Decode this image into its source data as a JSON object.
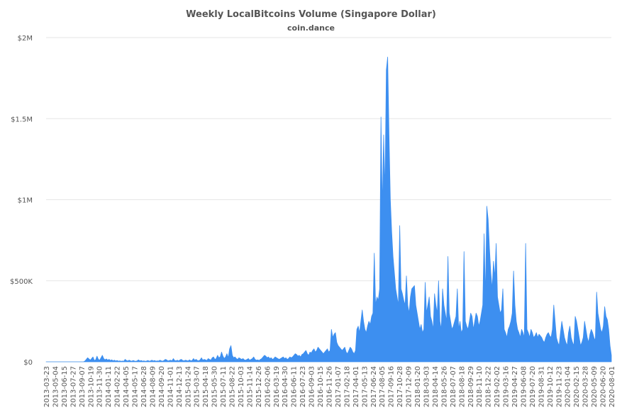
{
  "chart_data": {
    "type": "area",
    "title": "Weekly LocalBitcoins Volume (Singapore Dollar)",
    "subtitle": "coin.dance",
    "xlabel": "",
    "ylabel": "",
    "ylim": [
      0,
      2000000
    ],
    "y_ticks": [
      {
        "value": 0,
        "label": "$0"
      },
      {
        "value": 500000,
        "label": "$500K"
      },
      {
        "value": 1000000,
        "label": "$1M"
      },
      {
        "value": 1500000,
        "label": "$1.5M"
      },
      {
        "value": 2000000,
        "label": "$2M"
      }
    ],
    "grid": true,
    "legend": "none",
    "color": "#3d8ff0",
    "x_tick_labels": [
      "2013-03-23",
      "2013-05-04",
      "2013-06-15",
      "2013-07-27",
      "2013-09-07",
      "2013-10-19",
      "2013-11-30",
      "2014-01-11",
      "2014-02-22",
      "2014-04-05",
      "2014-05-17",
      "2014-06-28",
      "2014-08-09",
      "2014-09-20",
      "2014-11-01",
      "2014-12-13",
      "2015-01-24",
      "2015-03-07",
      "2015-04-18",
      "2015-05-30",
      "2015-07-11",
      "2015-08-22",
      "2015-10-03",
      "2015-11-14",
      "2015-12-26",
      "2016-02-06",
      "2016-03-19",
      "2016-04-30",
      "2016-06-11",
      "2016-07-23",
      "2016-09-03",
      "2016-10-15",
      "2016-11-26",
      "2017-01-07",
      "2017-02-18",
      "2017-04-01",
      "2017-05-13",
      "2017-06-24",
      "2017-08-05",
      "2017-09-16",
      "2017-10-28",
      "2017-12-09",
      "2018-01-20",
      "2018-03-03",
      "2018-04-14",
      "2018-05-26",
      "2018-07-07",
      "2018-08-18",
      "2018-09-29",
      "2018-11-10",
      "2018-12-22",
      "2019-02-02",
      "2019-03-16",
      "2019-04-27",
      "2019-06-08",
      "2019-07-20",
      "2019-08-31",
      "2019-10-12",
      "2019-11-23",
      "2020-01-04",
      "2020-02-15",
      "2020-03-28",
      "2020-05-09",
      "2020-06-20",
      "2020-08-01"
    ],
    "series": [
      {
        "values": [
          0,
          0,
          0,
          0,
          0,
          0,
          0,
          0,
          0,
          0,
          0,
          0,
          0,
          0,
          0,
          0,
          0,
          0,
          0,
          0,
          0,
          0,
          0,
          0,
          0,
          0,
          0,
          0,
          0,
          5000,
          15000,
          25000,
          18000,
          10000,
          20000,
          30000,
          8000,
          12000,
          35000,
          15000,
          10000,
          25000,
          40000,
          20000,
          12000,
          18000,
          10000,
          15000,
          8000,
          12000,
          6000,
          10000,
          5000,
          8000,
          4000,
          6000,
          3000,
          5000,
          4000,
          15000,
          8000,
          5000,
          10000,
          6000,
          4000,
          8000,
          5000,
          3000,
          6000,
          12000,
          5000,
          8000,
          4000,
          6000,
          3000,
          5000,
          8000,
          4000,
          6000,
          10000,
          5000,
          8000,
          4000,
          6000,
          5000,
          10000,
          6000,
          4000,
          8000,
          15000,
          12000,
          5000,
          8000,
          10000,
          6000,
          20000,
          8000,
          6000,
          10000,
          5000,
          12000,
          15000,
          8000,
          6000,
          10000,
          8000,
          5000,
          12000,
          6000,
          8000,
          20000,
          10000,
          15000,
          8000,
          6000,
          12000,
          25000,
          10000,
          15000,
          12000,
          8000,
          20000,
          15000,
          10000,
          25000,
          30000,
          15000,
          20000,
          40000,
          25000,
          30000,
          60000,
          35000,
          20000,
          30000,
          50000,
          25000,
          80000,
          100000,
          40000,
          25000,
          30000,
          20000,
          15000,
          25000,
          20000,
          15000,
          20000,
          12000,
          10000,
          15000,
          20000,
          10000,
          15000,
          20000,
          30000,
          15000,
          10000,
          12000,
          8000,
          15000,
          20000,
          30000,
          40000,
          35000,
          25000,
          30000,
          20000,
          25000,
          15000,
          20000,
          30000,
          25000,
          20000,
          15000,
          20000,
          25000,
          30000,
          20000,
          25000,
          15000,
          20000,
          30000,
          25000,
          30000,
          40000,
          50000,
          45000,
          35000,
          40000,
          30000,
          45000,
          50000,
          60000,
          70000,
          50000,
          40000,
          60000,
          55000,
          70000,
          80000,
          60000,
          70000,
          90000,
          80000,
          70000,
          60000,
          50000,
          60000,
          70000,
          80000,
          60000,
          70000,
          200000,
          150000,
          170000,
          180000,
          120000,
          100000,
          90000,
          80000,
          70000,
          80000,
          90000,
          60000,
          50000,
          70000,
          90000,
          80000,
          60000,
          50000,
          70000,
          200000,
          220000,
          180000,
          250000,
          320000,
          250000,
          200000,
          180000,
          220000,
          250000,
          230000,
          280000,
          300000,
          670000,
          350000,
          400000,
          380000,
          450000,
          1510000,
          950000,
          1400000,
          1050000,
          1800000,
          1880000,
          1400000,
          1000000,
          800000,
          650000,
          550000,
          450000,
          400000,
          350000,
          840000,
          450000,
          420000,
          380000,
          350000,
          530000,
          350000,
          300000,
          400000,
          450000,
          460000,
          470000,
          350000,
          300000,
          250000,
          200000,
          230000,
          180000,
          200000,
          490000,
          300000,
          350000,
          400000,
          280000,
          250000,
          200000,
          420000,
          350000,
          300000,
          500000,
          250000,
          200000,
          450000,
          350000,
          300000,
          250000,
          650000,
          300000,
          250000,
          200000,
          220000,
          250000,
          280000,
          450000,
          200000,
          250000,
          180000,
          200000,
          680000,
          250000,
          220000,
          200000,
          250000,
          300000,
          280000,
          200000,
          250000,
          300000,
          280000,
          220000,
          250000,
          300000,
          350000,
          790000,
          400000,
          960000,
          880000,
          700000,
          550000,
          450000,
          620000,
          520000,
          730000,
          400000,
          350000,
          300000,
          320000,
          450000,
          200000,
          180000,
          150000,
          200000,
          220000,
          250000,
          300000,
          560000,
          350000,
          250000,
          200000,
          180000,
          150000,
          200000,
          180000,
          150000,
          730000,
          200000,
          180000,
          150000,
          200000,
          180000,
          150000,
          160000,
          180000,
          150000,
          170000,
          160000,
          150000,
          130000,
          120000,
          150000,
          170000,
          180000,
          160000,
          150000,
          200000,
          350000,
          250000,
          150000,
          120000,
          100000,
          180000,
          250000,
          200000,
          150000,
          120000,
          100000,
          180000,
          220000,
          150000,
          120000,
          100000,
          280000,
          250000,
          200000,
          150000,
          100000,
          120000,
          150000,
          250000,
          200000,
          150000,
          120000,
          170000,
          200000,
          180000,
          150000,
          130000,
          430000,
          300000,
          250000,
          200000,
          180000,
          220000,
          340000,
          280000,
          260000,
          200000,
          100000,
          40000
        ]
      }
    ]
  }
}
